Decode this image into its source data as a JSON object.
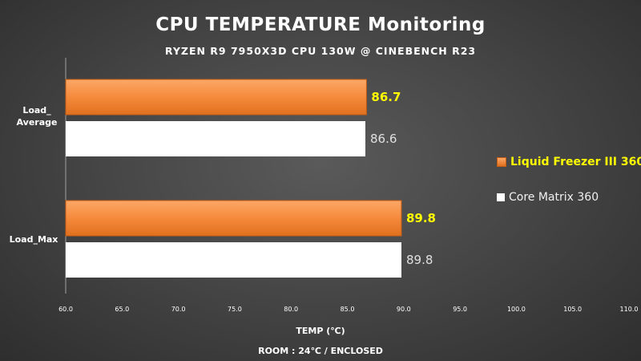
{
  "chart_data": {
    "type": "bar",
    "orientation": "horizontal",
    "title": "CPU TEMPERATURE Monitoring",
    "subtitle": "RYZEN R9 7950X3D CPU 130W @ CINEBENCH R23",
    "categories": [
      {
        "line1": "Load_",
        "line2": "Average"
      },
      {
        "line1": "Load_Max",
        "line2": ""
      }
    ],
    "series": [
      {
        "name": "Liquid Freezer III 360",
        "values": [
          86.7,
          89.8
        ],
        "labels": [
          "86.7",
          "89.8"
        ],
        "color": "#f68a3c",
        "label_color": "#ffff00"
      },
      {
        "name": "Core Matrix 360",
        "values": [
          86.6,
          89.8
        ],
        "labels": [
          "86.6",
          "89.8"
        ],
        "color": "#ffffff",
        "label_color": "#e0e0e0"
      }
    ],
    "xlim": [
      60.0,
      110.0
    ],
    "xticks": [
      "60.0",
      "65.0",
      "70.0",
      "75.0",
      "80.0",
      "85.0",
      "90.0",
      "95.0",
      "100.0",
      "105.0",
      "110.0"
    ],
    "xlabel": "TEMP (℃)",
    "note": "ROOM : 24℃ / ENCLOSED",
    "legend_position": "right",
    "grid": false
  }
}
